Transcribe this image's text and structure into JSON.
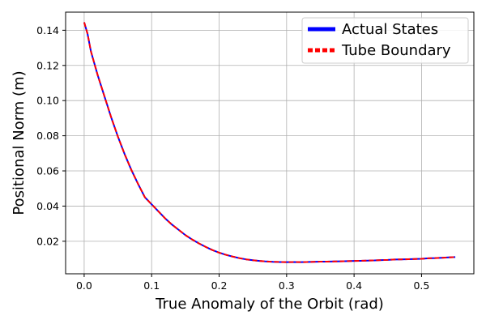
{
  "chart_data": {
    "type": "line",
    "title": "",
    "xlabel": "True Anomaly of the Orbit (rad)",
    "ylabel": "Positional Norm (m)",
    "xlim": [
      -0.0275,
      0.5775
    ],
    "ylim": [
      0.0015,
      0.1503
    ],
    "xticks": [
      0.0,
      0.1,
      0.2,
      0.3,
      0.4,
      0.5
    ],
    "xtick_labels": [
      "0.0",
      "0.1",
      "0.2",
      "0.3",
      "0.4",
      "0.5"
    ],
    "yticks": [
      0.02,
      0.04,
      0.06,
      0.08,
      0.1,
      0.12,
      0.14
    ],
    "ytick_labels": [
      "0.02",
      "0.04",
      "0.06",
      "0.08",
      "0.10",
      "0.12",
      "0.14"
    ],
    "grid": true,
    "legend_position": "top-right",
    "series": [
      {
        "name": "Actual States",
        "color": "#0000ff",
        "style": "solid",
        "x": [
          0.0,
          0.005,
          0.01,
          0.02,
          0.03,
          0.04,
          0.05,
          0.06,
          0.07,
          0.08,
          0.09,
          0.1,
          0.11,
          0.12,
          0.13,
          0.14,
          0.15,
          0.16,
          0.17,
          0.18,
          0.19,
          0.2,
          0.21,
          0.22,
          0.23,
          0.24,
          0.25,
          0.26,
          0.27,
          0.28,
          0.29,
          0.3,
          0.31,
          0.32,
          0.33,
          0.34,
          0.35,
          0.36,
          0.37,
          0.38,
          0.39,
          0.4,
          0.41,
          0.42,
          0.43,
          0.44,
          0.45,
          0.46,
          0.47,
          0.48,
          0.49,
          0.5,
          0.51,
          0.52,
          0.53,
          0.54,
          0.55
        ],
        "y": [
          0.1445,
          0.138,
          0.128,
          0.1145,
          0.1025,
          0.0905,
          0.0795,
          0.0695,
          0.0605,
          0.0525,
          0.045,
          0.041,
          0.037,
          0.033,
          0.0295,
          0.0265,
          0.0235,
          0.021,
          0.0188,
          0.0168,
          0.015,
          0.0135,
          0.0123,
          0.0113,
          0.0104,
          0.0097,
          0.0092,
          0.0088,
          0.0085,
          0.0083,
          0.0082,
          0.0081,
          0.0082,
          0.0081,
          0.0082,
          0.0083,
          0.0084,
          0.0084,
          0.0085,
          0.0086,
          0.0087,
          0.0088,
          0.0089,
          0.009,
          0.0091,
          0.0093,
          0.0094,
          0.0096,
          0.0097,
          0.0098,
          0.0099,
          0.01,
          0.0103,
          0.0104,
          0.0106,
          0.0108,
          0.011
        ]
      },
      {
        "name": "Tube Boundary",
        "color": "#ff0000",
        "style": "dashed",
        "x": [
          0.0,
          0.005,
          0.01,
          0.02,
          0.03,
          0.04,
          0.05,
          0.06,
          0.07,
          0.08,
          0.09,
          0.1,
          0.11,
          0.12,
          0.13,
          0.14,
          0.15,
          0.16,
          0.17,
          0.18,
          0.19,
          0.2,
          0.21,
          0.22,
          0.23,
          0.24,
          0.25,
          0.26,
          0.27,
          0.28,
          0.29,
          0.3,
          0.31,
          0.32,
          0.33,
          0.34,
          0.35,
          0.36,
          0.37,
          0.38,
          0.39,
          0.4,
          0.41,
          0.42,
          0.43,
          0.44,
          0.45,
          0.46,
          0.47,
          0.48,
          0.49,
          0.5,
          0.51,
          0.52,
          0.53,
          0.54,
          0.55
        ],
        "y": [
          0.1445,
          0.138,
          0.128,
          0.1145,
          0.1025,
          0.0905,
          0.0795,
          0.0695,
          0.0605,
          0.0525,
          0.045,
          0.041,
          0.037,
          0.033,
          0.0295,
          0.0265,
          0.0235,
          0.021,
          0.0188,
          0.0168,
          0.015,
          0.0135,
          0.0123,
          0.0113,
          0.0104,
          0.0097,
          0.0092,
          0.0088,
          0.0085,
          0.0083,
          0.0082,
          0.0081,
          0.0082,
          0.0081,
          0.0082,
          0.0083,
          0.0084,
          0.0084,
          0.0085,
          0.0086,
          0.0087,
          0.0088,
          0.0089,
          0.009,
          0.0091,
          0.0093,
          0.0094,
          0.0096,
          0.0097,
          0.0098,
          0.0099,
          0.01,
          0.0103,
          0.0104,
          0.0106,
          0.0108,
          0.011
        ]
      }
    ]
  }
}
